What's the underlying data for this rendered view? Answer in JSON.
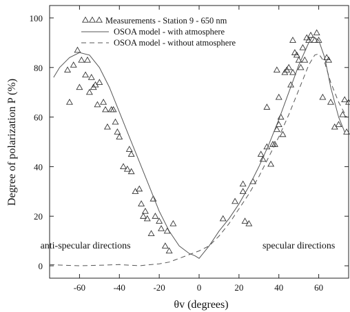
{
  "chart_data": {
    "type": "scatter",
    "xlabel": "θv (degrees)",
    "ylabel": "Degree of polarization P (%)",
    "xlim": [
      -75,
      75
    ],
    "ylim": [
      -5,
      105
    ],
    "xticks": [
      -60,
      -40,
      -20,
      0,
      20,
      40,
      60
    ],
    "yticks": [
      0,
      20,
      40,
      60,
      80,
      100
    ],
    "grid": false,
    "legend_position": "top-center",
    "annotations": [
      {
        "text": "anti-specular directions",
        "x": -57,
        "y": 7
      },
      {
        "text": "specular directions",
        "x": 50,
        "y": 7
      }
    ],
    "series": [
      {
        "name": "Measurements - Station 9 - 650 nm",
        "kind": "scatter",
        "marker": "triangle-open",
        "color": "#333333",
        "points": [
          [
            -66,
            79
          ],
          [
            -65,
            66
          ],
          [
            -63,
            81
          ],
          [
            -61,
            87
          ],
          [
            -60,
            72
          ],
          [
            -59,
            83
          ],
          [
            -57,
            77
          ],
          [
            -56,
            83
          ],
          [
            -55,
            70
          ],
          [
            -54,
            76
          ],
          [
            -53,
            72
          ],
          [
            -52,
            73
          ],
          [
            -51,
            65
          ],
          [
            -50,
            74
          ],
          [
            -48,
            66
          ],
          [
            -47,
            63
          ],
          [
            -46,
            56
          ],
          [
            -44,
            63
          ],
          [
            -43,
            63
          ],
          [
            -42,
            58
          ],
          [
            -41,
            54
          ],
          [
            -40,
            52
          ],
          [
            -38,
            40
          ],
          [
            -36,
            39
          ],
          [
            -35,
            47
          ],
          [
            -34,
            45
          ],
          [
            -34,
            38
          ],
          [
            -32,
            30
          ],
          [
            -30,
            31
          ],
          [
            -29,
            25
          ],
          [
            -28,
            20
          ],
          [
            -27,
            22
          ],
          [
            -26,
            19
          ],
          [
            -24,
            13
          ],
          [
            -23,
            27
          ],
          [
            -22,
            20
          ],
          [
            -20,
            18
          ],
          [
            -19,
            15
          ],
          [
            -17,
            8
          ],
          [
            -16,
            14
          ],
          [
            -15,
            6
          ],
          [
            -13,
            17
          ],
          [
            12,
            19
          ],
          [
            18,
            26
          ],
          [
            22,
            33
          ],
          [
            22,
            30
          ],
          [
            23,
            18
          ],
          [
            25,
            17
          ],
          [
            27,
            34
          ],
          [
            31,
            45
          ],
          [
            32,
            43
          ],
          [
            34,
            48
          ],
          [
            34,
            64
          ],
          [
            36,
            41
          ],
          [
            37,
            49
          ],
          [
            38,
            49
          ],
          [
            39,
            55
          ],
          [
            39,
            79
          ],
          [
            40,
            57
          ],
          [
            40,
            68
          ],
          [
            41,
            60
          ],
          [
            42,
            53
          ],
          [
            43,
            78
          ],
          [
            44,
            79
          ],
          [
            45,
            80
          ],
          [
            46,
            73
          ],
          [
            47,
            78
          ],
          [
            47,
            91
          ],
          [
            48,
            86
          ],
          [
            49,
            85
          ],
          [
            50,
            83
          ],
          [
            51,
            80
          ],
          [
            52,
            88
          ],
          [
            53,
            83
          ],
          [
            54,
            92
          ],
          [
            55,
            91
          ],
          [
            56,
            93
          ],
          [
            58,
            91
          ],
          [
            59,
            94
          ],
          [
            60,
            91
          ],
          [
            62,
            68
          ],
          [
            64,
            84
          ],
          [
            65,
            83
          ],
          [
            66,
            66
          ],
          [
            68,
            56
          ],
          [
            70,
            57
          ],
          [
            72,
            61
          ],
          [
            73,
            67
          ],
          [
            74,
            54
          ],
          [
            75,
            66
          ]
        ]
      },
      {
        "name": "OSOA model - with atmosphere",
        "kind": "line",
        "dash": "solid",
        "color": "#555555",
        "points": [
          [
            -73,
            76
          ],
          [
            -70,
            80
          ],
          [
            -65,
            84
          ],
          [
            -60,
            86
          ],
          [
            -55,
            85
          ],
          [
            -50,
            80
          ],
          [
            -45,
            72
          ],
          [
            -40,
            62
          ],
          [
            -35,
            52
          ],
          [
            -30,
            42
          ],
          [
            -25,
            32
          ],
          [
            -20,
            22
          ],
          [
            -15,
            14
          ],
          [
            -10,
            8
          ],
          [
            -5,
            5
          ],
          [
            -2,
            4
          ],
          [
            0,
            3
          ],
          [
            2,
            5
          ],
          [
            5,
            8
          ],
          [
            10,
            14
          ],
          [
            15,
            19
          ],
          [
            20,
            25
          ],
          [
            25,
            32
          ],
          [
            30,
            40
          ],
          [
            35,
            49
          ],
          [
            40,
            59
          ],
          [
            45,
            70
          ],
          [
            50,
            81
          ],
          [
            55,
            90
          ],
          [
            57,
            92.5
          ],
          [
            60,
            91
          ],
          [
            63,
            84
          ],
          [
            66,
            72
          ],
          [
            70,
            60
          ],
          [
            73,
            54
          ]
        ]
      },
      {
        "name": "OSOA model - without atmosphere",
        "kind": "line",
        "dash": "dashed",
        "color": "#555555",
        "points": [
          [
            -75,
            0.5
          ],
          [
            -70,
            0.3
          ],
          [
            -60,
            0
          ],
          [
            -50,
            0.2
          ],
          [
            -40,
            0.5
          ],
          [
            -30,
            0
          ],
          [
            -20,
            0.8
          ],
          [
            -15,
            1.5
          ],
          [
            -10,
            3
          ],
          [
            -5,
            4.5
          ],
          [
            0,
            6
          ],
          [
            5,
            8
          ],
          [
            10,
            12
          ],
          [
            15,
            17
          ],
          [
            20,
            23
          ],
          [
            25,
            29
          ],
          [
            30,
            36
          ],
          [
            35,
            44
          ],
          [
            40,
            52
          ],
          [
            45,
            61
          ],
          [
            50,
            71
          ],
          [
            55,
            81
          ],
          [
            58,
            85
          ],
          [
            60,
            85.5
          ],
          [
            63,
            82
          ],
          [
            66,
            74
          ],
          [
            70,
            66
          ],
          [
            74,
            60
          ]
        ]
      }
    ]
  }
}
